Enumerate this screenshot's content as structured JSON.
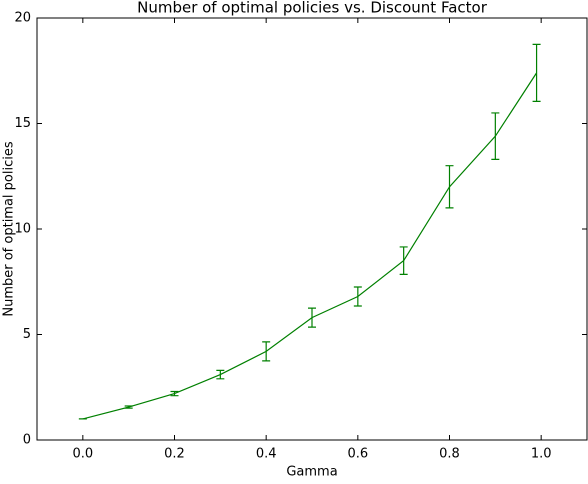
{
  "chart_data": {
    "type": "line",
    "title": "Number of optimal policies vs. Discount Factor",
    "x_label": "Gamma",
    "y_label": "Number of optimal policies",
    "x": [
      0.0,
      0.1,
      0.2,
      0.3,
      0.4,
      0.5,
      0.6,
      0.7,
      0.8,
      0.9,
      0.99
    ],
    "values": [
      1.0,
      1.56,
      2.2,
      3.1,
      4.2,
      5.8,
      6.8,
      8.5,
      12.0,
      14.4,
      17.4
    ],
    "errors": [
      0,
      0.05,
      0.1,
      0.2,
      0.45,
      0.45,
      0.45,
      0.65,
      1.0,
      1.1,
      1.35
    ],
    "color": "#008000",
    "xlim": [
      -0.1,
      1.1
    ],
    "ylim": [
      0,
      20
    ],
    "xticks": [
      {
        "value": 0,
        "label": "0.0"
      },
      0.2,
      0.4,
      0.6,
      0.8,
      {
        "value": 1,
        "label": "1.0"
      }
    ],
    "yticks": [
      0,
      5,
      10,
      15,
      20
    ],
    "grid": false
  }
}
